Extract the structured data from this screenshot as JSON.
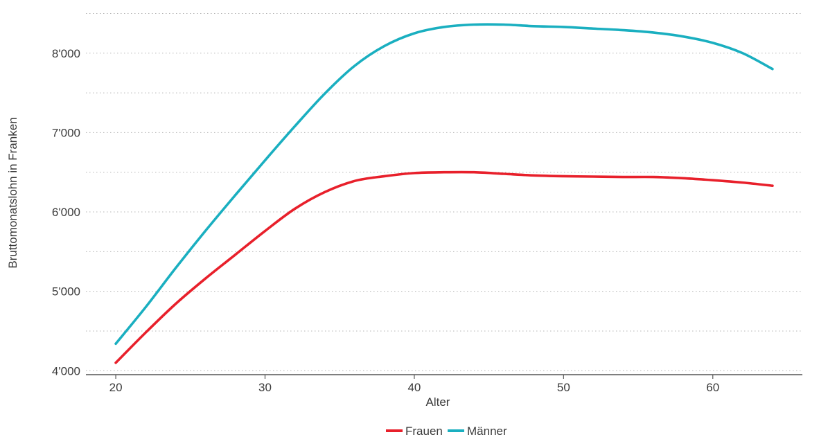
{
  "chart_data": {
    "type": "line",
    "title": "",
    "xlabel": "Alter",
    "ylabel": "Bruttomonatslohn in Franken",
    "xlim": [
      18,
      66
    ],
    "ylim": [
      3950,
      8600
    ],
    "x_ticks": [
      20,
      30,
      40,
      50,
      60
    ],
    "x_tick_labels": [
      "20",
      "30",
      "40",
      "50",
      "60"
    ],
    "y_ticks": [
      4000,
      5000,
      6000,
      7000,
      8000
    ],
    "y_tick_labels": [
      "4'000",
      "5'000",
      "6'000",
      "7'000",
      "8'000"
    ],
    "y_minor_grid": [
      4500,
      5500,
      6500,
      7500,
      8500
    ],
    "grid": true,
    "legend_position": "bottom",
    "series": [
      {
        "name": "Frauen",
        "color": "#e8202b",
        "x": [
          20,
          22,
          24,
          26,
          28,
          30,
          32,
          34,
          36,
          38,
          40,
          42,
          44,
          46,
          48,
          50,
          52,
          54,
          56,
          58,
          60,
          62,
          64
        ],
        "values": [
          4100,
          4480,
          4840,
          5160,
          5460,
          5760,
          6040,
          6250,
          6390,
          6450,
          6490,
          6500,
          6500,
          6480,
          6460,
          6450,
          6445,
          6440,
          6440,
          6425,
          6400,
          6370,
          6330
        ]
      },
      {
        "name": "Männer",
        "color": "#1aafc0",
        "x": [
          20,
          22,
          24,
          26,
          28,
          30,
          32,
          34,
          36,
          38,
          40,
          42,
          44,
          46,
          48,
          50,
          52,
          54,
          56,
          58,
          60,
          62,
          64
        ],
        "values": [
          4340,
          4800,
          5290,
          5760,
          6210,
          6650,
          7080,
          7490,
          7840,
          8090,
          8250,
          8330,
          8360,
          8360,
          8340,
          8330,
          8310,
          8290,
          8260,
          8210,
          8130,
          8000,
          7800
        ]
      }
    ]
  }
}
